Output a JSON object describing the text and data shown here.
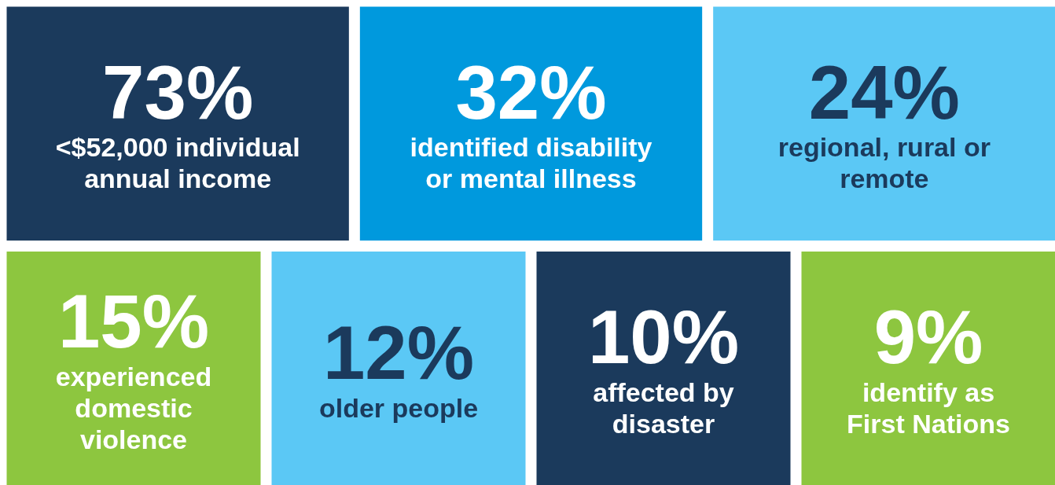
{
  "chart_data": {
    "type": "other",
    "categories": [
      "<$52,000 individual annual income",
      "identified disability or mental illness",
      "regional, rural or remote",
      "experienced domestic violence",
      "older people",
      "affected by disaster",
      "identify as First Nations"
    ],
    "values": [
      73,
      32,
      24,
      15,
      12,
      10,
      9
    ],
    "value_labels": [
      "73%",
      "32%",
      "24%",
      "15%",
      "12%",
      "10%",
      "9%"
    ],
    "colors": [
      "#1b3a5c",
      "#0099dd",
      "#5bc8f5",
      "#8dc63f",
      "#5bc8f5",
      "#1b3a5c",
      "#8dc63f"
    ]
  }
}
